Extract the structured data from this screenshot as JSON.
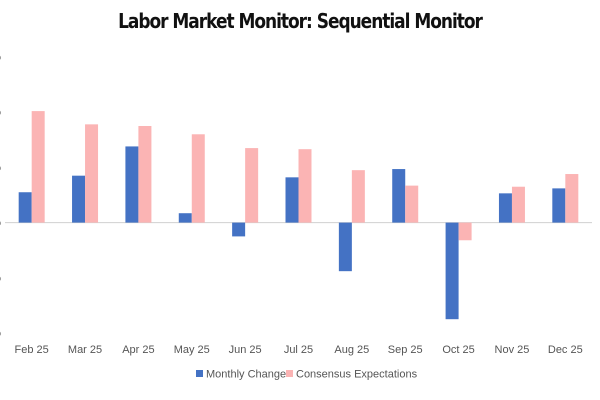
{
  "chart_data": {
    "type": "bar",
    "title": "Labor Market Monitor: Sequential Monitor",
    "xlabel": "",
    "ylabel": "",
    "categories": [
      "Feb 25",
      "Mar 25",
      "Apr 25",
      "May 25",
      "Jun 25",
      "Jul 25",
      "Aug 25",
      "Sep 25",
      "Oct 25",
      "Nov 25",
      "Dec 25"
    ],
    "series": [
      {
        "name": "Monthly Change",
        "color": "#4472C4",
        "values": [
          0.55,
          0.85,
          1.38,
          0.17,
          -0.25,
          0.82,
          -0.88,
          0.97,
          -1.75,
          0.53,
          0.62
        ]
      },
      {
        "name": "Consensus Expectations",
        "color": "#FBB4B4",
        "values": [
          2.02,
          1.78,
          1.75,
          1.6,
          1.35,
          1.33,
          0.95,
          0.67,
          -0.32,
          0.65,
          0.88
        ]
      }
    ],
    "ylim": [
      -2,
      3
    ],
    "yticks": [
      -2,
      -1,
      0,
      1,
      2,
      3
    ],
    "ytick_label_suffix": "%",
    "grid": false,
    "legend": "bottom-center"
  }
}
